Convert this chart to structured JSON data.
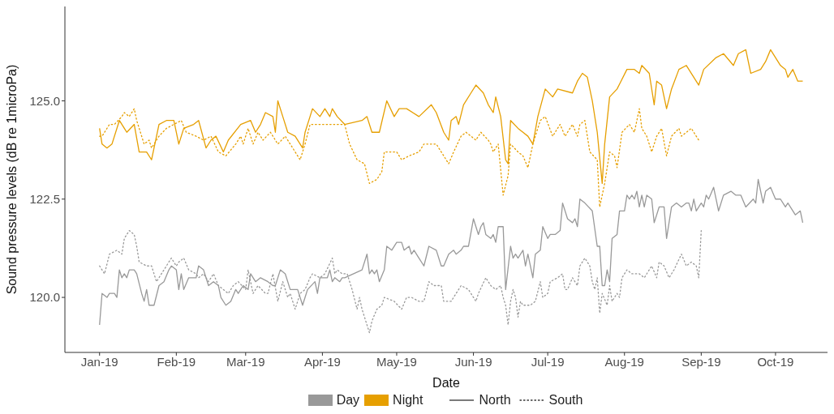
{
  "chart_data": {
    "type": "line",
    "xlabel": "Date",
    "ylabel": "Sound pressure levels (dB re 1microPa)",
    "xlim": [
      "2018-12-18",
      "2019-10-22"
    ],
    "xticks": [
      {
        "value": "2019-01-01",
        "label": "Jan-19"
      },
      {
        "value": "2019-02-01",
        "label": "Feb-19"
      },
      {
        "value": "2019-03-01",
        "label": "Mar-19"
      },
      {
        "value": "2019-04-01",
        "label": "Apr-19"
      },
      {
        "value": "2019-05-01",
        "label": "May-19"
      },
      {
        "value": "2019-06-01",
        "label": "Jun-19"
      },
      {
        "value": "2019-07-01",
        "label": "Jul-19"
      },
      {
        "value": "2019-08-01",
        "label": "Aug-19"
      },
      {
        "value": "2019-09-01",
        "label": "Sep-19"
      },
      {
        "value": "2019-10-01",
        "label": "Oct-19"
      }
    ],
    "ylim": [
      118.6,
      127.4
    ],
    "yticks": [
      {
        "value": 120,
        "label": "120.0"
      },
      {
        "value": 122.5,
        "label": "122.5"
      },
      {
        "value": 125,
        "label": "125.0"
      }
    ],
    "marker": "none",
    "annotations": [
      "Day",
      "Night",
      "North",
      "South"
    ],
    "series": [
      {
        "color": "#999999",
        "line_style": "solid",
        "x": [
          "2019-01-01",
          "2019-01-02",
          "2019-01-04",
          "2019-01-05",
          "2019-01-07",
          "2019-01-08",
          "2019-01-09",
          "2019-01-10",
          "2019-01-11",
          "2019-01-12",
          "2019-01-13",
          "2019-01-15",
          "2019-01-16",
          "2019-01-18",
          "2019-01-19",
          "2019-01-20",
          "2019-01-21",
          "2019-01-23",
          "2019-01-25",
          "2019-01-27",
          "2019-01-29",
          "2019-01-30",
          "2019-02-01",
          "2019-02-02",
          "2019-02-03",
          "2019-02-04",
          "2019-02-06",
          "2019-02-08",
          "2019-02-09",
          "2019-02-10",
          "2019-02-12",
          "2019-02-14",
          "2019-02-16",
          "2019-02-18",
          "2019-02-19",
          "2019-02-21",
          "2019-02-23",
          "2019-02-25",
          "2019-02-26",
          "2019-02-28",
          "2019-03-02",
          "2019-03-03",
          "2019-03-05",
          "2019-03-07",
          "2019-03-10",
          "2019-03-12",
          "2019-03-13",
          "2019-03-15",
          "2019-03-17",
          "2019-03-19",
          "2019-03-22",
          "2019-03-24",
          "2019-03-25",
          "2019-03-26",
          "2019-03-29",
          "2019-03-30",
          "2019-03-31",
          "2019-04-03",
          "2019-04-04",
          "2019-04-05",
          "2019-04-06",
          "2019-04-08",
          "2019-04-09",
          "2019-04-10",
          "2019-04-17",
          "2019-04-19",
          "2019-04-20",
          "2019-04-21",
          "2019-04-22",
          "2019-04-23",
          "2019-04-24",
          "2019-04-26",
          "2019-04-27",
          "2019-04-29",
          "2019-05-01",
          "2019-05-03",
          "2019-05-04",
          "2019-05-06",
          "2019-05-07",
          "2019-05-08",
          "2019-05-10",
          "2019-05-12",
          "2019-05-14",
          "2019-05-17",
          "2019-05-19",
          "2019-05-20",
          "2019-05-22",
          "2019-05-24",
          "2019-05-25",
          "2019-05-27",
          "2019-05-28",
          "2019-05-30",
          "2019-06-01",
          "2019-06-03",
          "2019-06-04",
          "2019-06-05",
          "2019-06-06",
          "2019-06-08",
          "2019-06-09",
          "2019-06-10",
          "2019-06-11",
          "2019-06-13",
          "2019-06-14",
          "2019-06-16",
          "2019-06-17",
          "2019-06-18",
          "2019-06-19",
          "2019-06-21",
          "2019-06-22",
          "2019-06-23",
          "2019-06-25",
          "2019-06-26",
          "2019-06-28",
          "2019-06-29",
          "2019-07-01",
          "2019-07-02",
          "2019-07-04",
          "2019-07-06",
          "2019-07-07",
          "2019-07-09",
          "2019-07-11",
          "2019-07-12",
          "2019-07-13",
          "2019-07-14",
          "2019-07-16",
          "2019-07-19",
          "2019-07-21",
          "2019-07-22",
          "2019-07-23",
          "2019-07-24",
          "2019-07-25",
          "2019-07-26",
          "2019-07-27",
          "2019-07-29",
          "2019-07-30",
          "2019-08-01",
          "2019-08-02",
          "2019-08-03",
          "2019-08-04",
          "2019-08-05",
          "2019-08-06",
          "2019-08-07",
          "2019-08-08",
          "2019-08-09",
          "2019-08-10",
          "2019-08-12",
          "2019-08-13",
          "2019-08-15",
          "2019-08-17",
          "2019-08-18",
          "2019-08-20",
          "2019-08-22",
          "2019-08-24",
          "2019-08-26",
          "2019-08-27",
          "2019-08-28",
          "2019-08-29",
          "2019-08-30",
          "2019-09-01",
          "2019-09-02",
          "2019-09-03",
          "2019-09-04",
          "2019-09-06",
          "2019-09-08",
          "2019-09-10",
          "2019-09-13",
          "2019-09-15",
          "2019-09-17",
          "2019-09-19",
          "2019-09-22",
          "2019-09-23",
          "2019-09-24",
          "2019-09-26",
          "2019-09-27",
          "2019-09-29",
          "2019-10-01",
          "2019-10-03",
          "2019-10-05",
          "2019-10-06",
          "2019-10-09",
          "2019-10-11",
          "2019-10-12"
        ],
        "values": [
          119.3,
          120.1,
          120.0,
          120.1,
          120.1,
          120.0,
          120.7,
          120.5,
          120.6,
          120.5,
          120.7,
          120.7,
          120.6,
          120.1,
          119.9,
          120.2,
          119.8,
          119.8,
          120.3,
          120.4,
          120.7,
          120.8,
          120.7,
          120.2,
          120.6,
          120.2,
          120.5,
          120.5,
          120.5,
          120.8,
          120.7,
          120.3,
          120.4,
          120.3,
          120.0,
          119.8,
          119.9,
          120.2,
          120.1,
          120.3,
          120.2,
          120.6,
          120.4,
          120.5,
          120.4,
          120.3,
          120.3,
          120.7,
          120.6,
          120.2,
          120.2,
          119.8,
          120.0,
          120.2,
          120.4,
          120.1,
          120.5,
          120.5,
          120.7,
          120.4,
          120.5,
          120.4,
          120.5,
          120.5,
          120.7,
          121.1,
          120.6,
          120.7,
          120.6,
          120.7,
          120.4,
          120.7,
          121.3,
          121.2,
          121.4,
          121.4,
          121.2,
          121.3,
          121.1,
          121.2,
          121.0,
          120.8,
          121.3,
          121.2,
          120.8,
          120.8,
          121.1,
          121.2,
          121.1,
          121.2,
          121.3,
          121.3,
          122.0,
          121.6,
          121.8,
          121.9,
          121.6,
          121.5,
          121.6,
          121.4,
          121.8,
          121.8,
          120.2,
          121.3,
          121.0,
          121.1,
          121.0,
          121.2,
          120.8,
          121.1,
          120.5,
          121.1,
          121.2,
          121.8,
          121.5,
          121.6,
          121.6,
          121.7,
          122.4,
          122.0,
          121.9,
          122.0,
          121.8,
          122.5,
          122.4,
          122.2,
          121.3,
          121.3,
          120.3,
          120.3,
          120.7,
          120.4,
          121.5,
          121.6,
          122.2,
          122.2,
          122.6,
          122.5,
          122.6,
          122.5,
          122.7,
          122.3,
          122.6,
          122.3,
          122.6,
          122.5,
          121.9,
          122.3,
          122.3,
          121.5,
          122.3,
          122.4,
          122.3,
          122.4,
          122.4,
          122.2,
          122.5,
          122.2,
          122.4,
          122.3,
          122.6,
          122.5,
          122.8,
          122.2,
          122.6,
          122.7,
          122.6,
          122.6,
          122.3,
          122.5,
          122.4,
          123.0,
          122.4,
          122.7,
          122.8,
          122.5,
          122.5,
          122.3,
          122.4,
          122.1,
          122.2,
          121.9
        ]
      },
      {
        "color": "#e69f00",
        "line_style": "solid",
        "x": [
          "2019-01-01",
          "2019-01-02",
          "2019-01-04",
          "2019-01-06",
          "2019-01-09",
          "2019-01-11",
          "2019-01-12",
          "2019-01-15",
          "2019-01-17",
          "2019-01-20",
          "2019-01-22",
          "2019-01-25",
          "2019-01-28",
          "2019-01-31",
          "2019-02-02",
          "2019-02-04",
          "2019-02-08",
          "2019-02-10",
          "2019-02-13",
          "2019-02-15",
          "2019-02-17",
          "2019-02-20",
          "2019-02-22",
          "2019-02-27",
          "2019-03-03",
          "2019-03-05",
          "2019-03-07",
          "2019-03-09",
          "2019-03-12",
          "2019-03-13",
          "2019-03-14",
          "2019-03-16",
          "2019-03-18",
          "2019-03-21",
          "2019-03-24",
          "2019-03-25",
          "2019-03-27",
          "2019-03-28",
          "2019-03-31",
          "2019-04-02",
          "2019-04-04",
          "2019-04-05",
          "2019-04-07",
          "2019-04-10",
          "2019-04-17",
          "2019-04-19",
          "2019-04-21",
          "2019-04-24",
          "2019-04-27",
          "2019-04-30",
          "2019-05-02",
          "2019-05-05",
          "2019-05-10",
          "2019-05-15",
          "2019-05-17",
          "2019-05-20",
          "2019-05-22",
          "2019-05-23",
          "2019-05-25",
          "2019-05-26",
          "2019-05-28",
          "2019-05-31",
          "2019-06-02",
          "2019-06-05",
          "2019-06-07",
          "2019-06-09",
          "2019-06-10",
          "2019-06-12",
          "2019-06-14",
          "2019-06-15",
          "2019-06-16",
          "2019-06-19",
          "2019-06-21",
          "2019-06-23",
          "2019-06-25",
          "2019-06-27",
          "2019-06-30",
          "2019-07-03",
          "2019-07-05",
          "2019-07-11",
          "2019-07-13",
          "2019-07-15",
          "2019-07-17",
          "2019-07-19",
          "2019-07-21",
          "2019-07-23",
          "2019-07-24",
          "2019-07-26",
          "2019-07-29",
          "2019-08-02",
          "2019-08-05",
          "2019-08-07",
          "2019-08-08",
          "2019-08-11",
          "2019-08-13",
          "2019-08-14",
          "2019-08-16",
          "2019-08-18",
          "2019-08-20",
          "2019-08-23",
          "2019-08-26",
          "2019-08-31",
          "2019-09-02",
          "2019-09-07",
          "2019-09-10",
          "2019-09-14",
          "2019-09-16",
          "2019-09-19",
          "2019-09-21",
          "2019-09-25",
          "2019-09-27",
          "2019-09-29",
          "2019-10-03",
          "2019-10-05",
          "2019-10-06",
          "2019-10-08",
          "2019-10-10",
          "2019-10-12"
        ],
        "values": [
          124.3,
          123.9,
          123.8,
          123.9,
          124.5,
          124.3,
          124.2,
          124.4,
          123.7,
          123.7,
          123.5,
          124.4,
          124.5,
          124.5,
          123.9,
          124.3,
          124.4,
          124.5,
          123.8,
          124.0,
          124.1,
          123.7,
          124.0,
          124.4,
          124.5,
          124.2,
          124.4,
          124.7,
          124.6,
          124.2,
          125.0,
          124.6,
          124.2,
          124.1,
          123.8,
          124.2,
          124.6,
          124.8,
          124.6,
          124.8,
          124.6,
          124.8,
          124.6,
          124.4,
          124.5,
          124.6,
          124.2,
          124.2,
          125.0,
          124.6,
          124.8,
          124.8,
          124.6,
          124.9,
          124.7,
          124.2,
          124.0,
          124.5,
          124.6,
          124.4,
          124.9,
          125.2,
          125.4,
          125.2,
          124.9,
          124.7,
          125.1,
          124.6,
          123.5,
          123.4,
          124.5,
          124.3,
          124.2,
          124.1,
          123.9,
          124.6,
          125.3,
          125.1,
          125.3,
          125.2,
          125.5,
          125.7,
          125.6,
          125.0,
          124.2,
          122.9,
          123.9,
          125.1,
          125.3,
          125.8,
          125.8,
          125.7,
          125.9,
          125.7,
          124.9,
          125.5,
          125.4,
          124.8,
          125.3,
          125.8,
          125.9,
          125.4,
          125.8,
          126.1,
          126.2,
          125.9,
          126.2,
          126.3,
          125.7,
          125.8,
          126.0,
          126.3,
          125.9,
          125.8,
          125.6,
          125.8,
          125.5,
          125.5
        ]
      },
      {
        "color": "#999999",
        "line_style": "dotted",
        "x": [
          "2019-01-01",
          "2019-01-03",
          "2019-01-05",
          "2019-01-08",
          "2019-01-10",
          "2019-01-11",
          "2019-01-13",
          "2019-01-15",
          "2019-01-16",
          "2019-01-17",
          "2019-01-20",
          "2019-01-22",
          "2019-01-24",
          "2019-01-25",
          "2019-01-27",
          "2019-01-29",
          "2019-01-30",
          "2019-02-01",
          "2019-02-02",
          "2019-02-04",
          "2019-02-06",
          "2019-02-09",
          "2019-02-10",
          "2019-02-12",
          "2019-02-14",
          "2019-02-16",
          "2019-02-18",
          "2019-02-22",
          "2019-02-24",
          "2019-02-26",
          "2019-03-01",
          "2019-03-02",
          "2019-03-04",
          "2019-03-06",
          "2019-03-09",
          "2019-03-10",
          "2019-03-12",
          "2019-03-14",
          "2019-03-16",
          "2019-03-18",
          "2019-03-19",
          "2019-03-21",
          "2019-03-23",
          "2019-03-25",
          "2019-03-27",
          "2019-03-28",
          "2019-03-31",
          "2019-04-02",
          "2019-04-05",
          "2019-04-06",
          "2019-04-07",
          "2019-04-09",
          "2019-04-11",
          "2019-04-13",
          "2019-04-15",
          "2019-04-16",
          "2019-04-17",
          "2019-04-19",
          "2019-04-20",
          "2019-04-21",
          "2019-04-23",
          "2019-04-25",
          "2019-04-26",
          "2019-04-30",
          "2019-05-03",
          "2019-05-05",
          "2019-05-07",
          "2019-05-10",
          "2019-05-12",
          "2019-05-14",
          "2019-05-16",
          "2019-05-19",
          "2019-05-20",
          "2019-05-23",
          "2019-05-25",
          "2019-05-27",
          "2019-05-30",
          "2019-06-02",
          "2019-06-03",
          "2019-06-06",
          "2019-06-08",
          "2019-06-10",
          "2019-06-12",
          "2019-06-13",
          "2019-06-14",
          "2019-06-15",
          "2019-06-16",
          "2019-06-17",
          "2019-06-18",
          "2019-06-19",
          "2019-06-20",
          "2019-06-21",
          "2019-06-24",
          "2019-06-26",
          "2019-06-28",
          "2019-06-29",
          "2019-07-01",
          "2019-07-02",
          "2019-07-05",
          "2019-07-07",
          "2019-07-08",
          "2019-07-09",
          "2019-07-11",
          "2019-07-13",
          "2019-07-14",
          "2019-07-16",
          "2019-07-18",
          "2019-07-19",
          "2019-07-20",
          "2019-07-21",
          "2019-07-22",
          "2019-07-23",
          "2019-07-25",
          "2019-07-26",
          "2019-07-27",
          "2019-07-29",
          "2019-07-30",
          "2019-07-31",
          "2019-08-02",
          "2019-08-04",
          "2019-08-07",
          "2019-08-09",
          "2019-08-12",
          "2019-08-14",
          "2019-08-15",
          "2019-08-17",
          "2019-08-19",
          "2019-08-21",
          "2019-08-24",
          "2019-08-26",
          "2019-08-28",
          "2019-08-30",
          "2019-08-31",
          "2019-09-01"
        ],
        "values": [
          120.8,
          120.6,
          121.1,
          121.2,
          121.1,
          121.5,
          121.7,
          121.6,
          121.3,
          120.9,
          120.8,
          120.8,
          120.4,
          120.5,
          120.7,
          120.9,
          121.0,
          120.8,
          120.9,
          121.0,
          120.7,
          120.6,
          120.5,
          120.6,
          120.4,
          120.6,
          120.3,
          120.1,
          120.3,
          120.4,
          120.2,
          120.7,
          120.1,
          120.3,
          120.1,
          120.1,
          120.6,
          119.9,
          120.4,
          120.0,
          120.1,
          119.7,
          120.1,
          120.2,
          120.5,
          120.6,
          120.5,
          120.6,
          121.0,
          120.6,
          120.7,
          120.6,
          120.6,
          120.2,
          119.7,
          120.0,
          119.7,
          119.3,
          119.1,
          119.4,
          119.7,
          119.8,
          120.0,
          119.9,
          119.7,
          120.0,
          120.0,
          119.9,
          119.9,
          120.4,
          120.3,
          120.3,
          119.9,
          119.9,
          120.1,
          120.3,
          120.2,
          119.9,
          120.1,
          120.5,
          120.3,
          120.2,
          120.3,
          120.0,
          119.8,
          119.3,
          119.9,
          120.2,
          120.0,
          119.5,
          119.9,
          119.8,
          119.8,
          119.9,
          120.4,
          120.0,
          120.1,
          120.4,
          120.5,
          120.6,
          120.2,
          120.2,
          120.5,
          120.3,
          120.8,
          121.0,
          120.8,
          120.4,
          120.2,
          120.5,
          119.6,
          120.1,
          119.8,
          120.3,
          119.9,
          120.1,
          120.0,
          120.5,
          120.7,
          120.6,
          120.6,
          120.5,
          120.8,
          120.5,
          120.9,
          120.8,
          120.5,
          120.7,
          121.1,
          120.8,
          120.9,
          120.8,
          120.5,
          121.7
        ]
      },
      {
        "color": "#e69f00",
        "line_style": "dotted",
        "x": [
          "2019-01-01",
          "2019-01-02",
          "2019-01-05",
          "2019-01-07",
          "2019-01-10",
          "2019-01-11",
          "2019-01-13",
          "2019-01-15",
          "2019-01-16",
          "2019-01-19",
          "2019-01-21",
          "2019-01-22",
          "2019-01-25",
          "2019-01-28",
          "2019-01-31",
          "2019-02-03",
          "2019-02-05",
          "2019-02-09",
          "2019-02-12",
          "2019-02-15",
          "2019-02-18",
          "2019-02-21",
          "2019-02-25",
          "2019-02-27",
          "2019-02-28",
          "2019-03-02",
          "2019-03-04",
          "2019-03-06",
          "2019-03-08",
          "2019-03-11",
          "2019-03-14",
          "2019-03-17",
          "2019-03-19",
          "2019-03-23",
          "2019-03-25",
          "2019-03-27",
          "2019-04-01",
          "2019-04-07",
          "2019-04-10",
          "2019-04-12",
          "2019-04-15",
          "2019-04-18",
          "2019-04-20",
          "2019-04-23",
          "2019-04-25",
          "2019-04-26",
          "2019-04-29",
          "2019-05-01",
          "2019-05-03",
          "2019-05-06",
          "2019-05-10",
          "2019-05-12",
          "2019-05-15",
          "2019-05-17",
          "2019-05-20",
          "2019-05-22",
          "2019-05-24",
          "2019-05-27",
          "2019-05-29",
          "2019-06-02",
          "2019-06-04",
          "2019-06-07",
          "2019-06-08",
          "2019-06-09",
          "2019-06-11",
          "2019-06-13",
          "2019-06-15",
          "2019-06-16",
          "2019-06-19",
          "2019-06-21",
          "2019-06-23",
          "2019-06-25",
          "2019-06-28",
          "2019-06-30",
          "2019-07-03",
          "2019-07-06",
          "2019-07-08",
          "2019-07-11",
          "2019-07-13",
          "2019-07-14",
          "2019-07-16",
          "2019-07-18",
          "2019-07-21",
          "2019-07-22",
          "2019-07-24",
          "2019-07-25",
          "2019-07-26",
          "2019-07-28",
          "2019-07-29",
          "2019-07-31",
          "2019-08-03",
          "2019-08-05",
          "2019-08-07",
          "2019-08-08",
          "2019-08-10",
          "2019-08-12",
          "2019-08-14",
          "2019-08-16",
          "2019-08-18",
          "2019-08-20",
          "2019-08-23",
          "2019-08-24",
          "2019-08-28",
          "2019-08-31"
        ],
        "values": [
          124.1,
          124.1,
          124.4,
          124.4,
          124.6,
          124.7,
          124.6,
          124.8,
          124.5,
          123.9,
          124.0,
          123.8,
          124.1,
          124.3,
          124.4,
          124.5,
          124.2,
          124.1,
          124.0,
          124.1,
          123.7,
          123.6,
          123.9,
          124.1,
          123.9,
          124.3,
          123.9,
          124.2,
          124.0,
          124.2,
          123.9,
          124.1,
          123.9,
          123.5,
          123.9,
          124.4,
          124.4,
          124.4,
          124.4,
          123.9,
          123.5,
          123.4,
          122.9,
          123.0,
          123.2,
          123.7,
          123.7,
          123.7,
          123.5,
          123.6,
          123.7,
          123.9,
          123.9,
          123.9,
          123.6,
          123.4,
          123.7,
          124.1,
          124.2,
          124.0,
          124.2,
          124.0,
          123.9,
          123.7,
          123.9,
          122.6,
          123.1,
          123.9,
          123.7,
          123.6,
          123.3,
          123.9,
          124.5,
          124.6,
          124.1,
          124.4,
          124.1,
          124.4,
          124.1,
          124.4,
          124.5,
          123.7,
          123.5,
          122.3,
          122.9,
          123.3,
          123.7,
          123.6,
          123.3,
          124.2,
          124.4,
          124.2,
          124.8,
          124.3,
          124.1,
          123.7,
          124.1,
          124.3,
          123.6,
          124.1,
          124.3,
          124.1,
          124.3,
          124.0
        ]
      }
    ]
  }
}
